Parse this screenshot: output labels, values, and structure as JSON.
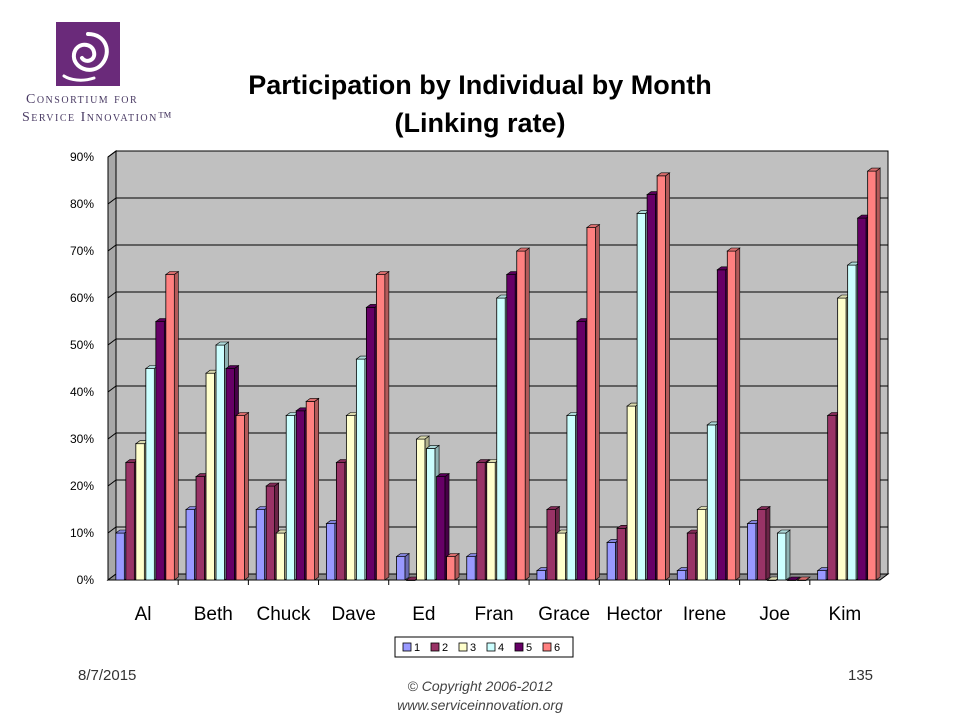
{
  "logo": {
    "line1": "Consortium for",
    "line2": "Service Innovation™"
  },
  "title_line1": "Participation by Individual by Month",
  "title_line2": "(Linking rate)",
  "footer": {
    "date": "8/7/2015",
    "page": "135",
    "copyright": "© Copyright 2006-2012",
    "website": "www.serviceinnovation.org"
  },
  "colors": {
    "series": [
      "#9999ff",
      "#993366",
      "#ffffcc",
      "#ccffff",
      "#660066",
      "#ff8080"
    ],
    "plot_bg": "#c0c0c0",
    "logo": "#6a2a7a"
  },
  "chart_data": {
    "type": "bar",
    "title": "Participation by Individual by Month (Linking rate)",
    "categories": [
      "Al",
      "Beth",
      "Chuck",
      "Dave",
      "Ed",
      "Fran",
      "Grace",
      "Hector",
      "Irene",
      "Joe",
      "Kim"
    ],
    "series": [
      {
        "name": "1",
        "values": [
          10,
          15,
          15,
          12,
          5,
          5,
          2,
          8,
          2,
          12,
          2
        ]
      },
      {
        "name": "2",
        "values": [
          25,
          22,
          20,
          25,
          0,
          25,
          15,
          11,
          10,
          15,
          35
        ]
      },
      {
        "name": "3",
        "values": [
          29,
          44,
          10,
          35,
          30,
          25,
          10,
          37,
          15,
          0,
          60
        ]
      },
      {
        "name": "4",
        "values": [
          45,
          50,
          35,
          47,
          28,
          60,
          35,
          78,
          33,
          10,
          67
        ]
      },
      {
        "name": "5",
        "values": [
          55,
          45,
          36,
          58,
          22,
          65,
          55,
          82,
          66,
          0,
          77
        ]
      },
      {
        "name": "6",
        "values": [
          65,
          35,
          38,
          65,
          5,
          70,
          75,
          86,
          70,
          0,
          87
        ]
      }
    ],
    "y_ticks": [
      "0%",
      "10%",
      "20%",
      "30%",
      "40%",
      "50%",
      "60%",
      "70%",
      "80%",
      "90%"
    ],
    "ylim": [
      0,
      90
    ],
    "y_format": "percent",
    "grid": true,
    "legend_position": "bottom-center"
  }
}
